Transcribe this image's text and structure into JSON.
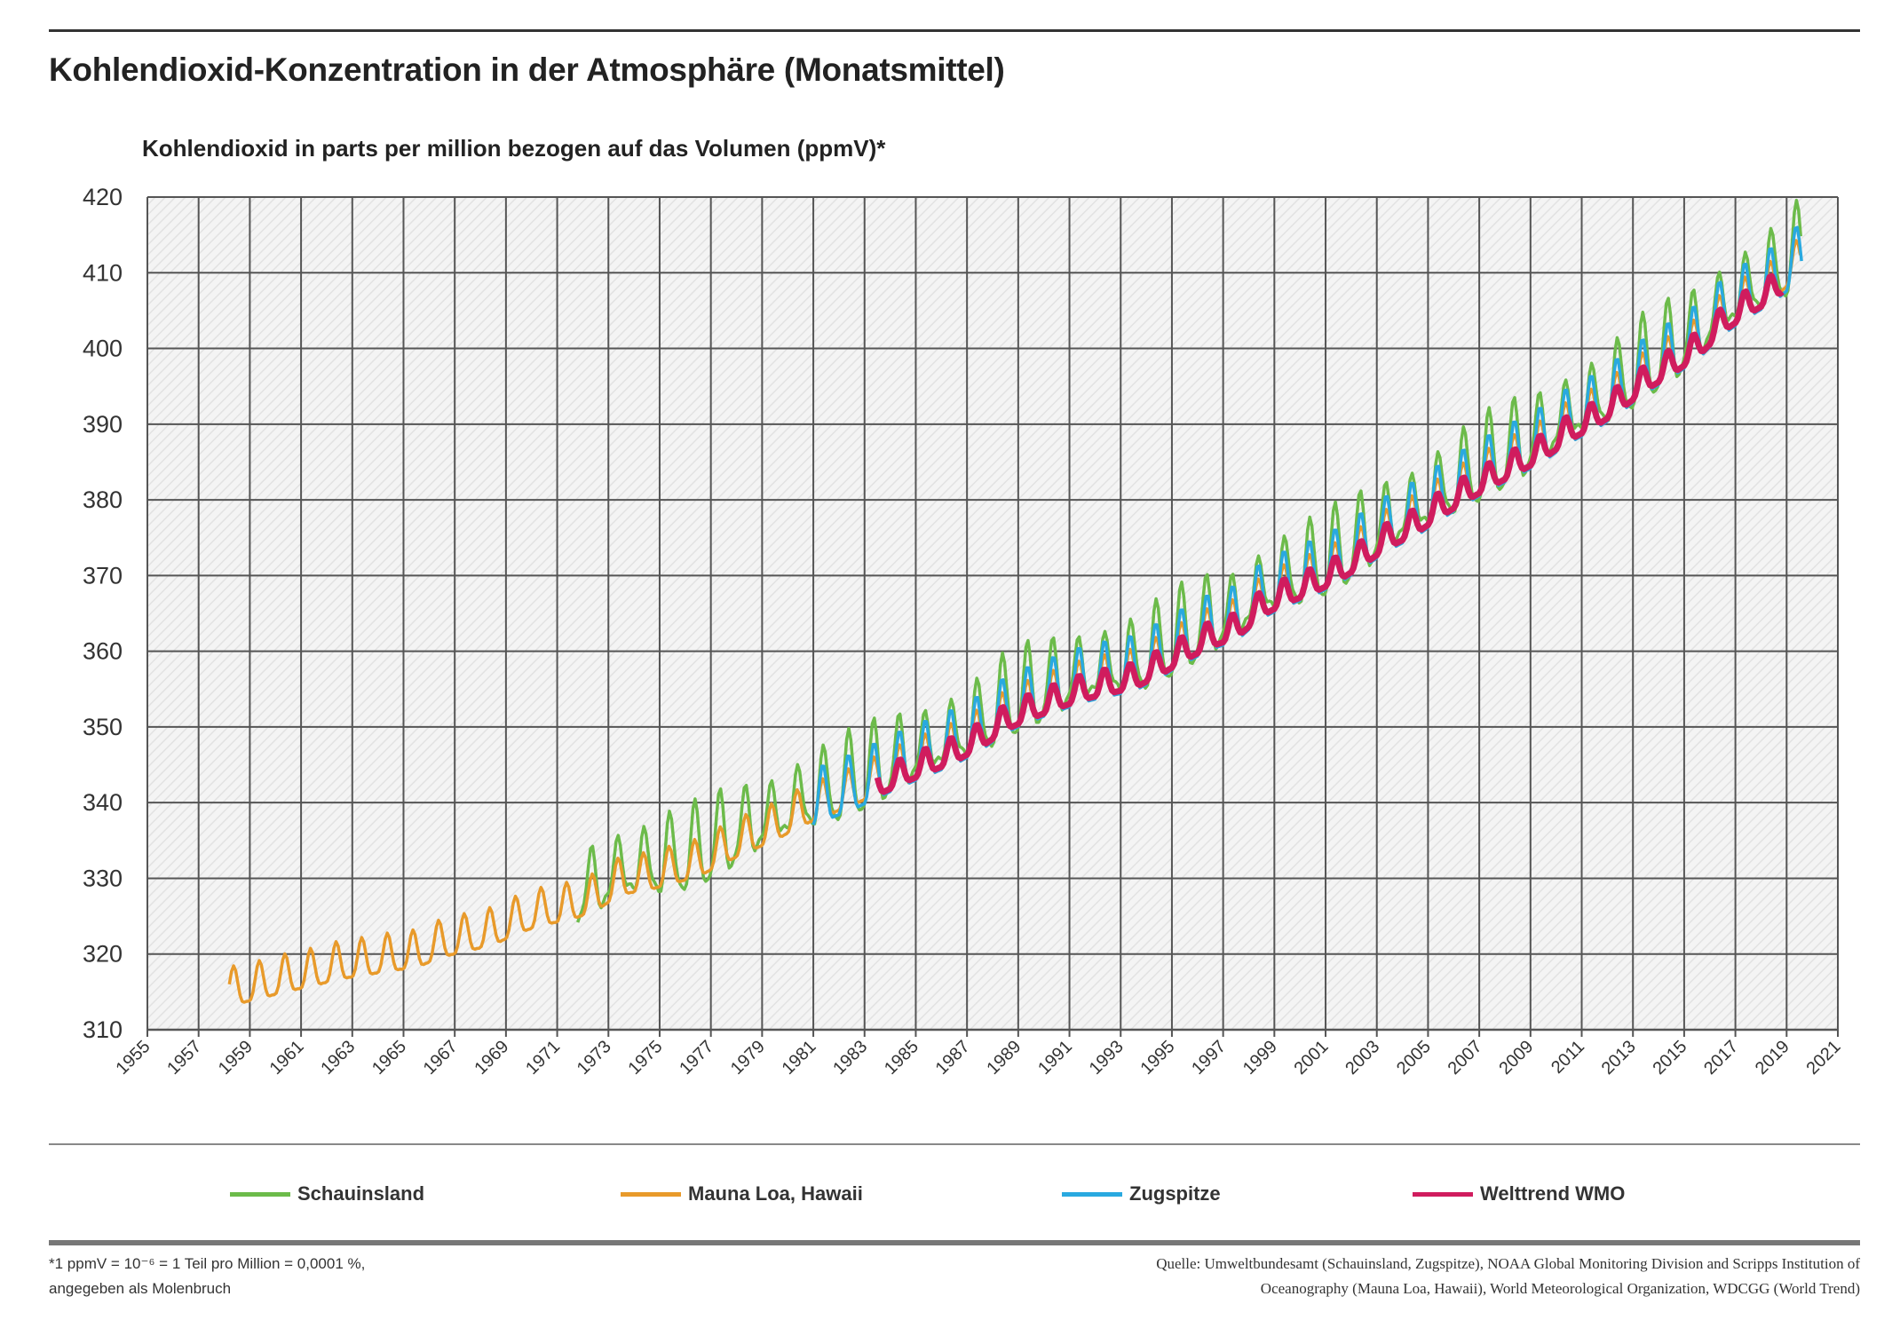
{
  "header": {
    "title": "Kohlendioxid-Konzentration in der Atmosphäre (Monatsmittel)"
  },
  "chart_data": {
    "type": "line",
    "title": "Kohlendioxid-Konzentration in der Atmosphäre (Monatsmittel)",
    "ylabel": "Kohlendioxid in parts per million bezogen auf das Volumen (ppmV)*",
    "xlabel": "",
    "xlim": [
      1955,
      2021
    ],
    "ylim": [
      310,
      420
    ],
    "x_ticks": [
      "1955",
      "1957",
      "1959",
      "1961",
      "1963",
      "1965",
      "1967",
      "1969",
      "1971",
      "1973",
      "1975",
      "1977",
      "1979",
      "1981",
      "1983",
      "1985",
      "1987",
      "1989",
      "1991",
      "1993",
      "1995",
      "1997",
      "1999",
      "2001",
      "2003",
      "2005",
      "2007",
      "2009",
      "2011",
      "2013",
      "2015",
      "2017",
      "2019",
      "2021"
    ],
    "y_ticks": [
      "310",
      "320",
      "330",
      "340",
      "350",
      "360",
      "370",
      "380",
      "390",
      "400",
      "410",
      "420"
    ],
    "grid": true,
    "legend_position": "bottom",
    "reference_annual_means": {
      "start_year": 1958,
      "values": [
        315.2,
        316.0,
        316.9,
        317.6,
        318.5,
        319.0,
        319.6,
        320.0,
        321.4,
        322.2,
        323.0,
        324.6,
        325.7,
        326.3,
        327.5,
        329.7,
        330.2,
        331.1,
        332.0,
        333.8,
        335.4,
        336.8,
        338.7,
        340.1,
        341.4,
        343.0,
        344.6,
        346.0,
        347.4,
        349.2,
        351.6,
        353.1,
        354.4,
        355.6,
        356.4,
        357.1,
        358.8,
        360.8,
        362.6,
        363.7,
        366.7,
        368.4,
        369.7,
        371.3,
        373.5,
        375.8,
        377.5,
        379.8,
        381.9,
        383.8,
        385.6,
        387.4,
        389.9,
        391.6,
        393.9,
        396.5,
        398.6,
        400.8,
        404.2,
        406.5,
        408.5,
        411.4
      ]
    },
    "series": [
      {
        "name": "Schauinsland",
        "color": "#6cbb4a",
        "start": 1971.8,
        "end": 2019.6,
        "offset_ppm": 1.5,
        "seasonal_amplitude_ppm": 11
      },
      {
        "name": "Mauna Loa, Hawaii",
        "color": "#e89a2a",
        "start": 1958.2,
        "end": 2019.6,
        "offset_ppm": 0,
        "seasonal_amplitude_ppm": 6
      },
      {
        "name": "Zugspitze",
        "color": "#29a9e0",
        "start": 1981.0,
        "end": 2019.6,
        "offset_ppm": 0.3,
        "seasonal_amplitude_ppm": 9
      },
      {
        "name": "Welttrend WMO",
        "color": "#d01c5e",
        "start": 1983.5,
        "end": 2018.9,
        "offset_ppm": -0.8,
        "seasonal_amplitude_ppm": 4
      }
    ]
  },
  "footer": {
    "note_line1": "*1 ppmV = 10⁻⁶ = 1 Teil pro Million = 0,0001 %,",
    "note_line2": "angegeben als Molenbruch",
    "source_line1": "Quelle: Umweltbundesamt (Schauinsland, Zugspitze), NOAA Global Monitoring Division and Scripps Institution of",
    "source_line2": "Oceanography  (Mauna Loa, Hawaii), World Meteorological Organization, WDCGG (World Trend)"
  }
}
